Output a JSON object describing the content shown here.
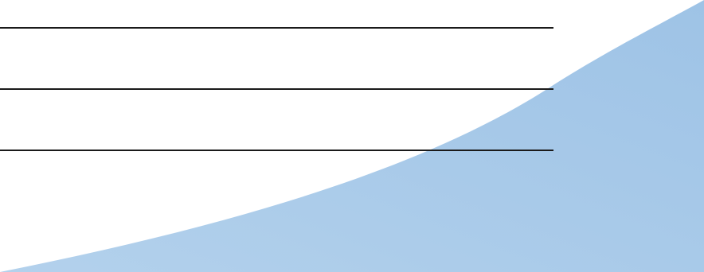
{
  "background_color": "#ffffff",
  "line_color": "#1a1a1a",
  "swoosh": {
    "color_light": "#b3d1ec",
    "color_dark": "#9ec3e6"
  },
  "lines": [
    {
      "id": "line-1"
    },
    {
      "id": "line-2"
    },
    {
      "id": "line-3"
    }
  ]
}
